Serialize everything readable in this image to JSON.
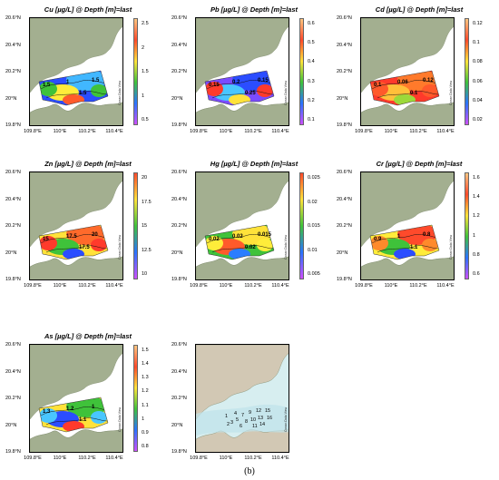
{
  "lat_labels": [
    "20.6°N",
    "20.4°N",
    "20.2°N",
    "20°N",
    "19.8°N"
  ],
  "lon_labels": [
    "109.8°E",
    "110°E",
    "110.2°E",
    "110.4°E"
  ],
  "credit": "Ocean Data View",
  "caption": "(b)",
  "colors": {
    "land": "#a3af90",
    "land_light": "#d2c8b4",
    "water": "#ffffff",
    "water_light": "#d7eef0"
  },
  "panels": [
    {
      "id": "cu",
      "title": "Cu [µg/L] @ Depth [m]=last",
      "colorbar_labels": [
        "2.5",
        "2",
        "1.5",
        "1",
        "0.5"
      ],
      "colorbar_gradient": [
        "#ffc680",
        "#ff4a2b",
        "#ffe23a",
        "#3fc23a",
        "#2a73ff",
        "#cc4fff"
      ],
      "field_colors": [
        "#2b4dff",
        "#41b7ff",
        "#ffec3a",
        "#ff5a2b",
        "#3fc23a"
      ],
      "contour_labels": [
        "1.5",
        "1",
        "1.5",
        "1.5"
      ]
    },
    {
      "id": "pb",
      "title": "Pb [µg/L] @ Depth [m]=last",
      "colorbar_labels": [
        "0.6",
        "0.5",
        "0.4",
        "0.3",
        "0.2",
        "0.1"
      ],
      "colorbar_gradient": [
        "#ffc680",
        "#ff4a2b",
        "#ffe23a",
        "#3fc23a",
        "#2a73ff",
        "#cc4fff"
      ],
      "field_colors": [
        "#7a4bff",
        "#2b4dff",
        "#49c6ff",
        "#ffe23a",
        "#ff3a2b"
      ],
      "contour_labels": [
        "0.15",
        "0.2",
        "0.25",
        "0.15"
      ]
    },
    {
      "id": "cd",
      "title": "Cd [µg/L] @ Depth [m]=last",
      "colorbar_labels": [
        "0.12",
        "0.1",
        "0.08",
        "0.06",
        "0.04",
        "0.02"
      ],
      "colorbar_gradient": [
        "#ffc680",
        "#ff4a2b",
        "#ffe23a",
        "#3fc23a",
        "#2a73ff",
        "#cc4fff"
      ],
      "field_colors": [
        "#ff3a2b",
        "#ff7a2b",
        "#ffc03a",
        "#9cd93a",
        "#ff5a2b"
      ],
      "contour_labels": [
        "0.1",
        "0.06",
        "0.1",
        "0.12"
      ]
    },
    {
      "id": "zn",
      "title": "Zn [µg/L] @ Depth [m]=last",
      "colorbar_labels": [
        "20",
        "17.5",
        "15",
        "12.5",
        "10"
      ],
      "colorbar_gradient": [
        "#ff4a2b",
        "#ffe23a",
        "#3fc23a",
        "#2a73ff",
        "#cc4fff"
      ],
      "field_colors": [
        "#ffe23a",
        "#ff6a2b",
        "#3fc23a",
        "#2b4dff",
        "#ff3a2b"
      ],
      "contour_labels": [
        "15",
        "17.5",
        "17.5",
        "20"
      ]
    },
    {
      "id": "hg",
      "title": "Hg [µg/L] @ Depth [m]=last",
      "colorbar_labels": [
        "0.025",
        "0.02",
        "0.015",
        "0.01",
        "0.005"
      ],
      "colorbar_gradient": [
        "#ff4a2b",
        "#ffe23a",
        "#3fc23a",
        "#2a73ff",
        "#cc4fff"
      ],
      "field_colors": [
        "#3fc23a",
        "#ffe23a",
        "#ff5a2b",
        "#2b7dff",
        "#ffec3a"
      ],
      "contour_labels": [
        "0.02",
        "0.02",
        "0.02",
        "0.015"
      ]
    },
    {
      "id": "cr",
      "title": "Cr [µg/L] @ Depth [m]=last",
      "colorbar_labels": [
        "1.6",
        "1.4",
        "1.2",
        "1",
        "0.8",
        "0.6"
      ],
      "colorbar_gradient": [
        "#ffc680",
        "#ff4a2b",
        "#ffe23a",
        "#3fc23a",
        "#2a73ff",
        "#cc4fff"
      ],
      "field_colors": [
        "#ffec3a",
        "#ff4a2b",
        "#3fc23a",
        "#2b4dff",
        "#ff8a2b"
      ],
      "contour_labels": [
        "0.9",
        "1",
        "1.1",
        "0.8"
      ]
    },
    {
      "id": "as",
      "title": "As [µg/L] @ Depth [m]=last",
      "colorbar_labels": [
        "1.5",
        "1.4",
        "1.3",
        "1.2",
        "1.1",
        "1",
        "0.9",
        "0.8"
      ],
      "colorbar_gradient": [
        "#ffc680",
        "#ff4a2b",
        "#ffe23a",
        "#3fc23a",
        "#2a73ff",
        "#cc4fff"
      ],
      "field_colors": [
        "#ffe23a",
        "#3fc23a",
        "#2b4dff",
        "#ff3a2b",
        "#49c6ff"
      ],
      "contour_labels": [
        "1.3",
        "1.2",
        "1.1",
        "1"
      ]
    }
  ],
  "station_map": {
    "stations": [
      "1",
      "2",
      "3",
      "4",
      "5",
      "6",
      "7",
      "8",
      "9",
      "10",
      "11",
      "12",
      "13",
      "14",
      "15",
      "16"
    ]
  }
}
